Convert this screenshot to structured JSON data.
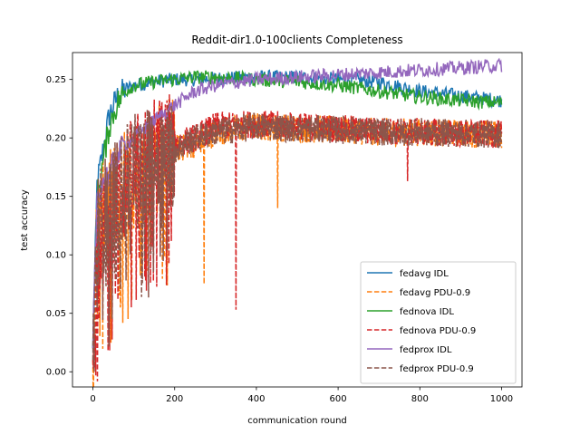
{
  "chart_data": {
    "type": "line",
    "title": "Reddit-dir1.0-100clients Completeness",
    "xlabel": "communication round",
    "ylabel": "test accuracy",
    "xlim": [
      -50,
      1050
    ],
    "ylim": [
      -0.013,
      0.273
    ],
    "x_ticks": [
      0,
      200,
      400,
      600,
      800,
      1000
    ],
    "x_tick_labels": [
      "0",
      "200",
      "400",
      "600",
      "800",
      "1000"
    ],
    "y_ticks": [
      0.0,
      0.05,
      0.1,
      0.15,
      0.2,
      0.25
    ],
    "y_tick_labels": [
      "0.00",
      "0.05",
      "0.10",
      "0.15",
      "0.20",
      "0.25"
    ],
    "grid": false,
    "legend_position": "lower-right",
    "x": [
      0,
      10,
      20,
      40,
      60,
      80,
      100,
      150,
      200,
      250,
      300,
      400,
      500,
      600,
      700,
      800,
      900,
      1000
    ],
    "series": [
      {
        "name": "fedavg IDL",
        "color": "#1f77b4",
        "dash": "solid",
        "values": [
          0.02,
          0.16,
          0.18,
          0.22,
          0.235,
          0.242,
          0.245,
          0.248,
          0.25,
          0.25,
          0.251,
          0.252,
          0.252,
          0.25,
          0.248,
          0.24,
          0.236,
          0.232
        ]
      },
      {
        "name": "fedavg PDU-0.9",
        "color": "#ff7f0e",
        "dash": "dashed",
        "values": [
          0.01,
          0.12,
          0.13,
          0.14,
          0.15,
          0.16,
          0.17,
          0.18,
          0.19,
          0.195,
          0.205,
          0.21,
          0.208,
          0.207,
          0.205,
          0.205,
          0.204,
          0.203
        ]
      },
      {
        "name": "fednova IDL",
        "color": "#2ca02c",
        "dash": "solid",
        "values": [
          0.02,
          0.15,
          0.17,
          0.21,
          0.23,
          0.24,
          0.245,
          0.248,
          0.25,
          0.252,
          0.252,
          0.25,
          0.248,
          0.245,
          0.24,
          0.235,
          0.232,
          0.23
        ]
      },
      {
        "name": "fednova PDU-0.9",
        "color": "#d62728",
        "dash": "dashed",
        "values": [
          0.01,
          0.11,
          0.12,
          0.135,
          0.15,
          0.16,
          0.17,
          0.185,
          0.195,
          0.2,
          0.21,
          0.212,
          0.21,
          0.208,
          0.206,
          0.205,
          0.204,
          0.203
        ]
      },
      {
        "name": "fedprox IDL",
        "color": "#9467bd",
        "dash": "solid",
        "values": [
          0.02,
          0.15,
          0.16,
          0.17,
          0.185,
          0.195,
          0.2,
          0.215,
          0.228,
          0.24,
          0.245,
          0.25,
          0.252,
          0.254,
          0.256,
          0.258,
          0.26,
          0.262
        ]
      },
      {
        "name": "fedprox PDU-0.9",
        "color": "#8c564b",
        "dash": "dashed",
        "values": [
          0.01,
          0.12,
          0.13,
          0.14,
          0.15,
          0.16,
          0.17,
          0.18,
          0.19,
          0.2,
          0.205,
          0.21,
          0.208,
          0.207,
          0.205,
          0.205,
          0.204,
          0.203
        ]
      }
    ],
    "dips": [
      {
        "series": "fedavg PDU-0.9",
        "x": 272,
        "y": 0.075
      },
      {
        "series": "fedavg PDU-0.9",
        "x": 452,
        "y": 0.14
      },
      {
        "series": "fednova PDU-0.9",
        "x": 350,
        "y": 0.053
      },
      {
        "series": "fednova PDU-0.9",
        "x": 770,
        "y": 0.163
      }
    ]
  }
}
